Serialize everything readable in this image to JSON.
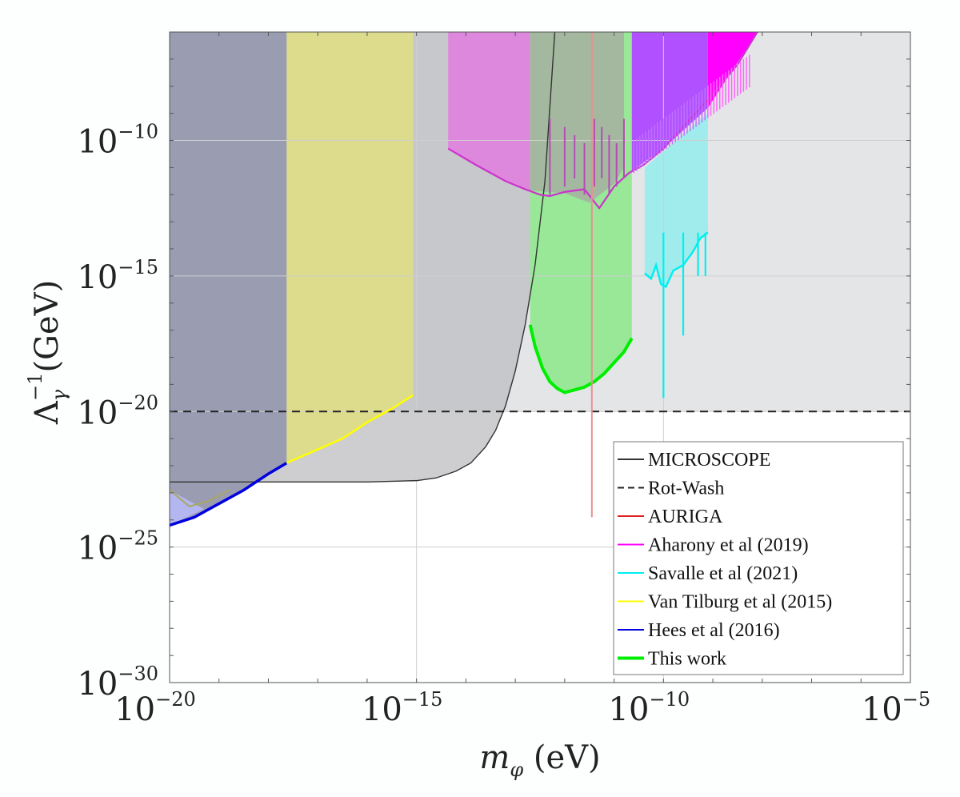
{
  "chart_data": {
    "type": "line",
    "title": "",
    "xlabel": "m_φ (eV)",
    "ylabel": "Λ_γ^-1 (GeV)",
    "xscale": "log",
    "yscale": "log",
    "xlim_log10": [
      -20,
      -5
    ],
    "ylim_log10": [
      -30,
      -6
    ],
    "grid": true,
    "x_ticks": [
      {
        "log": -20,
        "base": "10",
        "exp": "−20"
      },
      {
        "log": -15,
        "base": "10",
        "exp": "−15"
      },
      {
        "log": -10,
        "base": "10",
        "exp": "−10"
      },
      {
        "log": -5,
        "base": "10",
        "exp": "−5"
      }
    ],
    "y_ticks": [
      {
        "log": -10,
        "base": "10",
        "exp": "−10"
      },
      {
        "log": -15,
        "base": "10",
        "exp": "−15"
      },
      {
        "log": -20,
        "base": "10",
        "exp": "−20"
      },
      {
        "log": -25,
        "base": "10",
        "exp": "−25"
      },
      {
        "log": -30,
        "base": "10",
        "exp": "−30"
      }
    ],
    "axis_labels": {
      "x_main": "m",
      "x_sub": "φ",
      "x_unit": " (eV)",
      "y_main": "Λ",
      "y_sub": "γ",
      "y_sup": "−1",
      "y_unit": "(GeV)"
    },
    "legend_position": "bottom-right",
    "series": [
      {
        "name": "MICROSCOPE",
        "color": "#333333",
        "style": "solid",
        "fill": "#bdbec2",
        "x_log10": [
          -20,
          -16,
          -15,
          -14.6,
          -14.2,
          -13.9,
          -13.6,
          -13.4,
          -13.2,
          -13.0,
          -12.8,
          -12.6,
          -12.4,
          -12.2
        ],
        "y_log10": [
          -22.6,
          -22.6,
          -22.55,
          -22.45,
          -22.2,
          -21.9,
          -21.3,
          -20.7,
          -19.8,
          -18.5,
          -16.8,
          -14.6,
          -11.5,
          -6
        ]
      },
      {
        "name": "Rot-Wash",
        "color": "#222222",
        "style": "dashed",
        "fill": "#e4e5e7",
        "x_log10": [
          -20,
          -5
        ],
        "y_log10": [
          -20,
          -20
        ]
      },
      {
        "name": "AURIGA",
        "color": "#e02020",
        "style": "solid",
        "x_log10": [
          -11.45,
          -11.45
        ],
        "y_log10": [
          -6,
          -23.9
        ]
      },
      {
        "name": "Aharony et al (2019)",
        "color": "#ff00ff",
        "style": "solid",
        "fill": "#dd88dd",
        "x_log10": [
          -14.36,
          -13.8,
          -13.2,
          -12.8,
          -12.5,
          -12.3,
          -12.0,
          -11.6,
          -11.3,
          -11.0,
          -10.7,
          -10.4,
          -10.0,
          -9.5,
          -9.0,
          -8.5,
          -8.1
        ],
        "y_log10": [
          -10.3,
          -10.9,
          -11.5,
          -11.8,
          -12.0,
          -12.05,
          -11.9,
          -11.8,
          -12.5,
          -11.7,
          -11.2,
          -10.9,
          -10.3,
          -9.3,
          -8.3,
          -7.2,
          -6
        ]
      },
      {
        "name": "Savalle et al (2021)",
        "color": "#00f0f0",
        "style": "solid",
        "fill": "#a0ecec",
        "x_log10": [
          -10.38,
          -10.25,
          -10.15,
          -10.05,
          -9.95,
          -9.8,
          -9.6,
          -9.4,
          -9.25,
          -9.1
        ],
        "y_log10": [
          -14.9,
          -15.1,
          -14.6,
          -15.3,
          -15.4,
          -14.8,
          -14.6,
          -14.1,
          -13.6,
          -13.4
        ]
      },
      {
        "name": "Van Tilburg et al (2015)",
        "color": "#ffff00",
        "style": "solid",
        "fill": "#dcdc8c",
        "x_log10": [
          -17.63,
          -17.0,
          -16.5,
          -16.0,
          -15.5,
          -15.07
        ],
        "y_log10": [
          -21.9,
          -21.4,
          -21.0,
          -20.4,
          -19.9,
          -19.4
        ]
      },
      {
        "name": "Hees et al (2016)",
        "color": "#0000e0",
        "style": "solid",
        "fill": "#9a9cb2",
        "x_log10": [
          -20,
          -19.5,
          -19,
          -18.5,
          -18,
          -17.63
        ],
        "y_log10": [
          -24.2,
          -23.9,
          -23.4,
          -22.9,
          -22.3,
          -21.9
        ]
      },
      {
        "name": "This work",
        "color": "#00ee00",
        "style": "solid",
        "fill": "#98e898",
        "x_log10": [
          -12.7,
          -12.6,
          -12.45,
          -12.3,
          -12.15,
          -12.0,
          -11.8,
          -11.6,
          -11.4,
          -11.2,
          -11.0,
          -10.8,
          -10.64
        ],
        "y_log10": [
          -16.8,
          -17.6,
          -18.4,
          -18.9,
          -19.15,
          -19.3,
          -19.2,
          -19.1,
          -18.9,
          -18.6,
          -18.2,
          -17.8,
          -17.3
        ]
      }
    ]
  }
}
